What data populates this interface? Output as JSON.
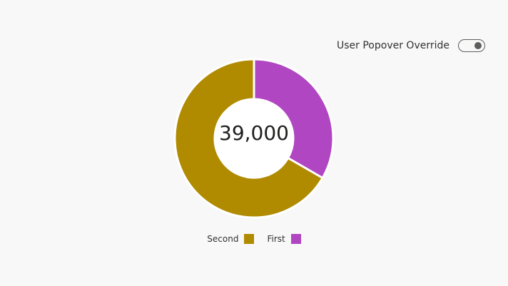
{
  "toggle": {
    "label": "User Popover Override",
    "state": "on"
  },
  "chart_data": {
    "type": "pie",
    "variant": "donut",
    "center_label": "39,000",
    "slices": [
      {
        "name": "First",
        "value": 13000,
        "color": "#b146c2"
      },
      {
        "name": "Second",
        "value": 26000,
        "color": "#b08b00"
      }
    ],
    "legend": [
      {
        "name": "Second",
        "color": "#b08b00"
      },
      {
        "name": "First",
        "color": "#b146c2"
      }
    ],
    "legend_placement": "bottom-center"
  }
}
